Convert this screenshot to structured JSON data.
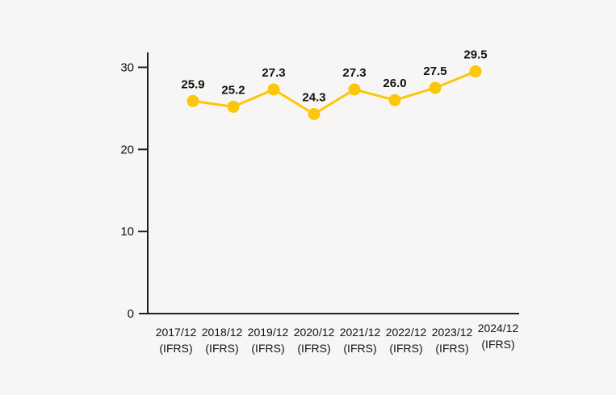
{
  "page": {
    "background": "#f7f6f4"
  },
  "chart_data": {
    "type": "line",
    "title": "",
    "categories": [
      {
        "period": "2017/12",
        "basis": "(IFRS)"
      },
      {
        "period": "2018/12",
        "basis": "(IFRS)"
      },
      {
        "period": "2019/12",
        "basis": "(IFRS)"
      },
      {
        "period": "2020/12",
        "basis": "(IFRS)"
      },
      {
        "period": "2021/12",
        "basis": "(IFRS)"
      },
      {
        "period": "2022/12",
        "basis": "(IFRS)"
      },
      {
        "period": "2023/12",
        "basis": "(IFRS)"
      },
      {
        "period": "2024/12",
        "basis": "(IFRS)",
        "raised": true
      }
    ],
    "series": [
      {
        "name": "value-by-period",
        "values": [
          25.9,
          25.2,
          27.3,
          24.3,
          27.3,
          26.0,
          27.5,
          29.5
        ],
        "labels": [
          "25.9",
          "25.2",
          "27.3",
          "24.3",
          "27.3",
          "26.0",
          "27.5",
          "29.5"
        ],
        "color": "#fcc609"
      }
    ],
    "y_axis": {
      "ticks": [
        0,
        10,
        20,
        30
      ],
      "tick_labels": [
        "0",
        "10",
        "20",
        "30"
      ],
      "min": 0,
      "max": 31.8
    },
    "grid": false,
    "legend": false,
    "axis_color": "#1f1f1f",
    "label_color": "#111111"
  }
}
